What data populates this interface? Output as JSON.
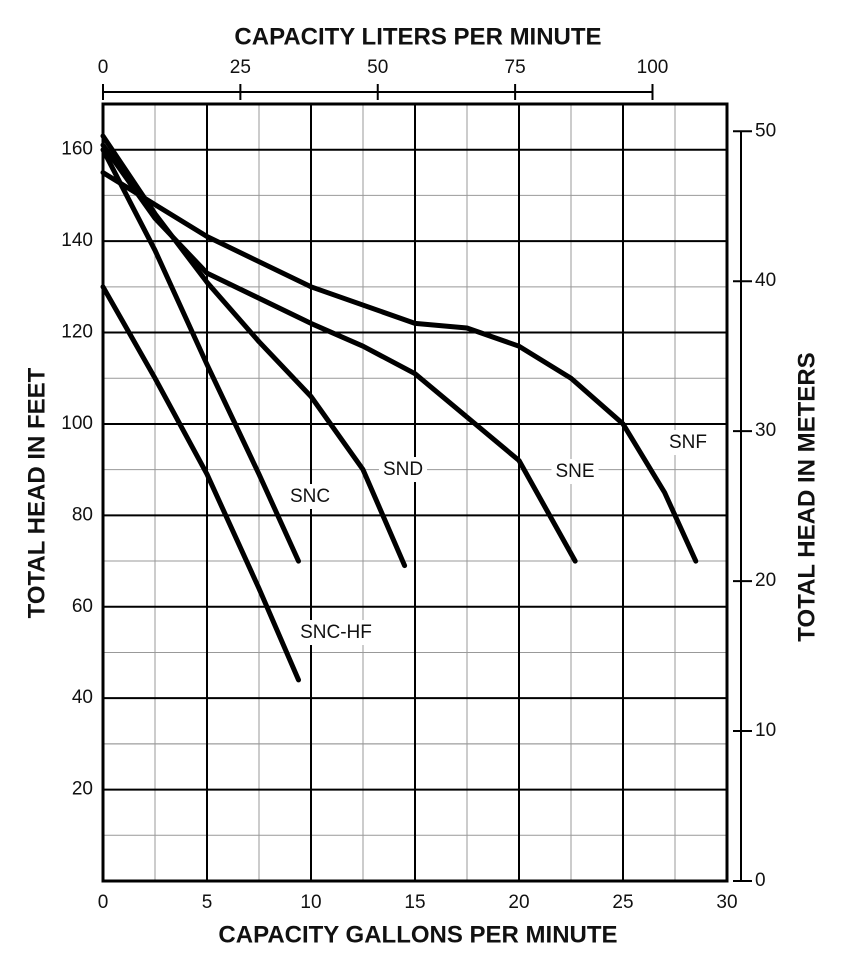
{
  "chart_data": {
    "type": "line",
    "x_label": "CAPACITY GALLONS PER MINUTE",
    "x2_label": "CAPACITY LITERS PER MINUTE",
    "y_label": "TOTAL HEAD IN FEET",
    "y2_label": "TOTAL HEAD IN METERS",
    "xlim": [
      0,
      30
    ],
    "xticks": [
      0,
      5,
      10,
      15,
      20,
      25,
      30
    ],
    "x2lim": [
      0,
      113.56
    ],
    "x2ticks": [
      0,
      25,
      50,
      75,
      100
    ],
    "ylim": [
      0,
      170
    ],
    "yticks": [
      20,
      40,
      60,
      80,
      100,
      120,
      140,
      160
    ],
    "y2lim": [
      0,
      51.82
    ],
    "y2ticks": [
      0,
      10,
      20,
      30,
      40,
      50
    ],
    "grid": true,
    "minor_grid": true,
    "series": [
      {
        "name": "SNC-HF",
        "color": "#000000",
        "x": [
          0,
          2.5,
          5,
          7.5,
          9.4
        ],
        "values": [
          130,
          110,
          89,
          64,
          44
        ]
      },
      {
        "name": "SNC",
        "color": "#000000",
        "x": [
          0,
          2.5,
          5,
          7.5,
          9.4
        ],
        "values": [
          160,
          138,
          113,
          89,
          70
        ]
      },
      {
        "name": "SND",
        "color": "#000000",
        "x": [
          0,
          2.5,
          5,
          7.5,
          10,
          12.5,
          14.5
        ],
        "values": [
          163,
          146,
          131,
          118,
          106,
          90,
          69
        ]
      },
      {
        "name": "SNE",
        "color": "#000000",
        "x": [
          0,
          2.5,
          5,
          10,
          12.5,
          15,
          20,
          22.7
        ],
        "values": [
          161,
          145,
          133,
          122,
          117,
          111,
          92,
          70
        ]
      },
      {
        "name": "SNF",
        "color": "#000000",
        "x": [
          0,
          2.5,
          5,
          10,
          15,
          17.5,
          20,
          22.5,
          25,
          27,
          28.5
        ],
        "values": [
          155,
          148,
          141,
          130,
          122,
          121,
          117,
          110,
          100,
          85,
          70
        ]
      }
    ]
  }
}
